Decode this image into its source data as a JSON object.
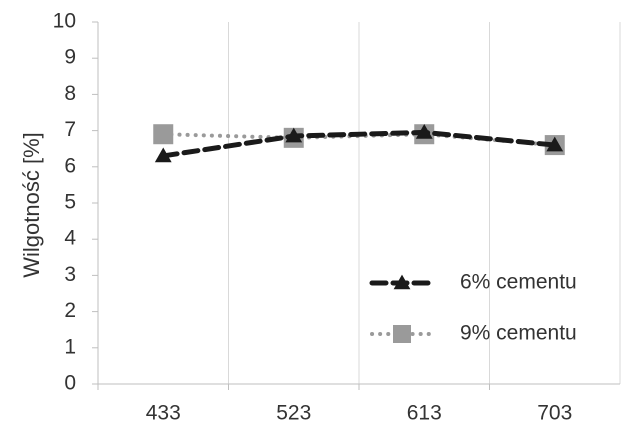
{
  "chart_data": {
    "type": "line",
    "title": "",
    "xlabel": "",
    "ylabel": "Wilgotność [%]",
    "categories": [
      "433",
      "523",
      "613",
      "703"
    ],
    "yticks": [
      "0",
      "1",
      "2",
      "3",
      "4",
      "5",
      "6",
      "7",
      "8",
      "9",
      "10"
    ],
    "ylim": [
      0,
      10
    ],
    "grid": "vertical-lines",
    "legend_position": "bottom-right",
    "series": [
      {
        "name": "6% cementu",
        "values": [
          6.3,
          6.85,
          6.95,
          6.6
        ],
        "color": "#1a1a1a",
        "line_style": "dashed",
        "marker": "triangle"
      },
      {
        "name": "9% cementu",
        "values": [
          6.9,
          6.8,
          6.9,
          6.6
        ],
        "color": "#9a9a9a",
        "line_style": "dotted",
        "marker": "square"
      }
    ]
  }
}
